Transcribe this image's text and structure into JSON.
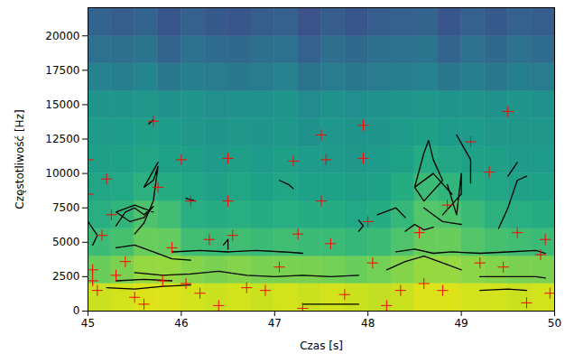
{
  "chart_data": {
    "type": "spectrogram",
    "x_label": "Czas [s]",
    "y_label": "Częstotliwość [Hz]",
    "xlim": [
      45,
      50
    ],
    "ylim": [
      0,
      22050
    ],
    "xticks": [
      45,
      46,
      47,
      48,
      49,
      50
    ],
    "yticks": [
      0,
      2500,
      5000,
      7500,
      10000,
      12500,
      15000,
      17500,
      20000
    ],
    "grid": false,
    "cell_x": [
      45,
      45.25,
      45.5,
      45.75,
      46,
      46.25,
      46.5,
      46.75,
      47,
      47.25,
      47.5,
      47.75,
      48,
      48.25,
      48.5,
      48.75,
      49,
      49.25,
      49.5,
      49.75,
      50
    ],
    "cell_y": [
      0,
      2000,
      4000,
      6000,
      8000,
      10000,
      12000,
      14000,
      16000,
      18000,
      20000,
      22050
    ],
    "zlim": [
      -100,
      -25
    ],
    "levels": [
      [
        -31,
        -30,
        -29,
        -29,
        -30,
        -31,
        -30,
        -31,
        -30,
        -31,
        -30,
        -31,
        -32,
        -31,
        -29,
        -29,
        -30,
        -30,
        -31,
        -30
      ],
      [
        -42,
        -40,
        -37,
        -37,
        -39,
        -40,
        -39,
        -40,
        -40,
        -40,
        -41,
        -42,
        -41,
        -39,
        -37,
        -37,
        -38,
        -39,
        -40,
        -40
      ],
      [
        -49,
        -47,
        -42,
        -43,
        -48,
        -49,
        -48,
        -49,
        -48,
        -49,
        -49,
        -50,
        -49,
        -46,
        -42,
        -42,
        -45,
        -47,
        -48,
        -49
      ],
      [
        -53,
        -51,
        -46,
        -48,
        -53,
        -54,
        -53,
        -54,
        -53,
        -54,
        -54,
        -55,
        -54,
        -50,
        -45,
        -46,
        -49,
        -52,
        -53,
        -54
      ],
      [
        -56,
        -55,
        -52,
        -54,
        -56,
        -57,
        -56,
        -57,
        -56,
        -57,
        -57,
        -58,
        -57,
        -54,
        -49,
        -51,
        -54,
        -56,
        -57,
        -57
      ],
      [
        -58,
        -57,
        -56,
        -57,
        -58,
        -59,
        -58,
        -59,
        -58,
        -59,
        -59,
        -60,
        -59,
        -57,
        -54,
        -56,
        -57,
        -58,
        -59,
        -59
      ],
      [
        -59,
        -59,
        -58,
        -59,
        -60,
        -61,
        -60,
        -61,
        -60,
        -62,
        -60,
        -61,
        -61,
        -59,
        -58,
        -59,
        -59,
        -60,
        -60,
        -60
      ],
      [
        -61,
        -61,
        -60,
        -62,
        -61,
        -63,
        -62,
        -62,
        -61,
        -64,
        -62,
        -63,
        -62,
        -61,
        -60,
        -61,
        -61,
        -62,
        -61,
        -62
      ],
      [
        -67,
        -68,
        -66,
        -70,
        -68,
        -69,
        -70,
        -69,
        -67,
        -71,
        -69,
        -70,
        -69,
        -68,
        -67,
        -70,
        -68,
        -70,
        -68,
        -69
      ],
      [
        -72,
        -73,
        -71,
        -76,
        -72,
        -74,
        -75,
        -73,
        -72,
        -77,
        -73,
        -75,
        -73,
        -72,
        -71,
        -76,
        -72,
        -75,
        -72,
        -74
      ],
      [
        -76,
        -78,
        -76,
        -80,
        -77,
        -79,
        -80,
        -78,
        -77,
        -81,
        -78,
        -80,
        -78,
        -77,
        -76,
        -80,
        -77,
        -79,
        -77,
        -78
      ]
    ],
    "series": [
      {
        "type": "line",
        "color": "black",
        "line_style": "solid",
        "paths": [
          [
            [
              45.9,
              4300
            ],
            [
              46.2,
              4400
            ],
            [
              46.5,
              4300
            ],
            [
              46.8,
              4400
            ],
            [
              47.1,
              4300
            ],
            [
              47.3,
              4200
            ]
          ],
          [
            [
              45.5,
              2800
            ],
            [
              45.8,
              2600
            ],
            [
              46.1,
              2700
            ],
            [
              46.4,
              2900
            ],
            [
              46.7,
              2600
            ],
            [
              47.0,
              2500
            ],
            [
              47.3,
              2600
            ],
            [
              47.6,
              2500
            ],
            [
              47.9,
              2600
            ]
          ],
          [
            [
              45.2,
              1700
            ],
            [
              45.5,
              1600
            ],
            [
              45.8,
              1800
            ],
            [
              46.1,
              1900
            ]
          ],
          [
            [
              45.3,
              2200
            ],
            [
              45.6,
              2300
            ],
            [
              45.9,
              2200
            ]
          ],
          [
            [
              47.3,
              500
            ],
            [
              47.6,
              500
            ],
            [
              47.9,
              500
            ]
          ],
          [
            [
              45.0,
              6500
            ],
            [
              45.1,
              5500
            ],
            [
              45.05,
              4800
            ]
          ],
          [
            [
              45.3,
              6200
            ],
            [
              45.4,
              7200
            ],
            [
              45.5,
              7500
            ],
            [
              45.6,
              7000
            ],
            [
              45.7,
              7600
            ],
            [
              45.6,
              6800
            ],
            [
              45.45,
              6500
            ],
            [
              45.3,
              7200
            ],
            [
              45.5,
              7700
            ],
            [
              45.7,
              7200
            ]
          ],
          [
            [
              45.5,
              5600
            ],
            [
              45.6,
              6400
            ],
            [
              45.7,
              8000
            ],
            [
              45.75,
              10500
            ],
            [
              45.7,
              9500
            ],
            [
              45.6,
              9000
            ],
            [
              45.75,
              10800
            ]
          ],
          [
            [
              45.3,
              4600
            ],
            [
              45.5,
              4800
            ],
            [
              45.7,
              4300
            ],
            [
              45.9,
              3800
            ],
            [
              46.1,
              3700
            ]
          ],
          [
            [
              45.65,
              13600
            ],
            [
              45.7,
              13900
            ]
          ],
          [
            [
              46.05,
              8200
            ],
            [
              46.15,
              8000
            ]
          ],
          [
            [
              46.45,
              4800
            ],
            [
              46.5,
              5200
            ],
            [
              46.5,
              4500
            ]
          ],
          [
            [
              47.05,
              9500
            ],
            [
              47.15,
              9200
            ],
            [
              47.2,
              8900
            ]
          ],
          [
            [
              47.9,
              6600
            ],
            [
              47.95,
              6200
            ],
            [
              47.9,
              5800
            ]
          ],
          [
            [
              48.2,
              3000
            ],
            [
              48.4,
              3600
            ],
            [
              48.6,
              4000
            ],
            [
              48.8,
              3500
            ],
            [
              49.0,
              3000
            ]
          ],
          [
            [
              48.3,
              4300
            ],
            [
              48.5,
              4500
            ],
            [
              48.7,
              4200
            ],
            [
              48.9,
              4300
            ],
            [
              49.2,
              4200
            ],
            [
              49.5,
              4300
            ],
            [
              49.8,
              4400
            ],
            [
              49.9,
              4200
            ]
          ],
          [
            [
              49.2,
              2500
            ],
            [
              49.5,
              2500
            ],
            [
              49.8,
              2500
            ],
            [
              49.9,
              2400
            ]
          ],
          [
            [
              49.2,
              1500
            ],
            [
              49.5,
              1600
            ],
            [
              49.7,
              1500
            ]
          ],
          [
            [
              48.4,
              5800
            ],
            [
              48.5,
              6300
            ],
            [
              48.6,
              5900
            ],
            [
              48.7,
              6100
            ]
          ],
          [
            [
              48.5,
              9000
            ],
            [
              48.6,
              11500
            ],
            [
              48.65,
              12400
            ],
            [
              48.7,
              11000
            ],
            [
              48.8,
              9500
            ],
            [
              48.6,
              8000
            ],
            [
              48.5,
              9000
            ],
            [
              48.7,
              10000
            ],
            [
              48.9,
              8500
            ]
          ],
          [
            [
              48.8,
              7000
            ],
            [
              49.0,
              8500
            ],
            [
              49.0,
              10000
            ],
            [
              48.95,
              7000
            ],
            [
              48.85,
              9200
            ]
          ],
          [
            [
              48.95,
              12800
            ],
            [
              49.1,
              11000
            ],
            [
              49.1,
              9300
            ]
          ],
          [
            [
              48.1,
              7000
            ],
            [
              48.3,
              7500
            ],
            [
              48.4,
              6800
            ]
          ],
          [
            [
              49.4,
              6000
            ],
            [
              49.5,
              7500
            ],
            [
              49.6,
              9500
            ],
            [
              49.7,
              9800
            ]
          ],
          [
            [
              49.5,
              9800
            ],
            [
              49.6,
              10800
            ]
          ],
          [
            [
              48.6,
              7500
            ],
            [
              48.8,
              6500
            ],
            [
              49.0,
              6300
            ]
          ]
        ]
      },
      {
        "type": "scatter",
        "color": "red",
        "marker": "plus",
        "x": [
          45.0,
          45.0,
          45.05,
          45.05,
          45.1,
          45.2,
          45.25,
          45.15,
          45.3,
          45.4,
          45.5,
          45.6,
          45.7,
          45.75,
          45.8,
          45.9,
          46.0,
          46.05,
          46.1,
          46.2,
          46.3,
          46.4,
          46.5,
          46.5,
          46.55,
          46.7,
          46.9,
          47.05,
          47.2,
          47.25,
          47.3,
          47.5,
          47.55,
          47.5,
          47.6,
          47.75,
          47.95,
          47.95,
          48.0,
          48.05,
          48.2,
          48.35,
          48.55,
          48.6,
          48.8,
          48.85,
          49.1,
          49.2,
          49.3,
          49.5,
          49.45,
          49.6,
          49.85,
          49.9,
          49.95,
          49.7
        ],
        "y": [
          11000,
          8500,
          3000,
          2200,
          1500,
          9600,
          7000,
          5500,
          2600,
          3600,
          1000,
          500,
          13800,
          9000,
          2200,
          4600,
          11000,
          2000,
          8000,
          1300,
          5200,
          400,
          11100,
          8000,
          5500,
          1700,
          1500,
          3200,
          10900,
          5600,
          200,
          12800,
          11000,
          8000,
          4900,
          1200,
          13500,
          11100,
          6500,
          3500,
          400,
          1500,
          5700,
          2000,
          1500,
          7700,
          12300,
          3500,
          10100,
          14500,
          3200,
          5700,
          4100,
          5200,
          1300,
          600
        ]
      }
    ]
  }
}
